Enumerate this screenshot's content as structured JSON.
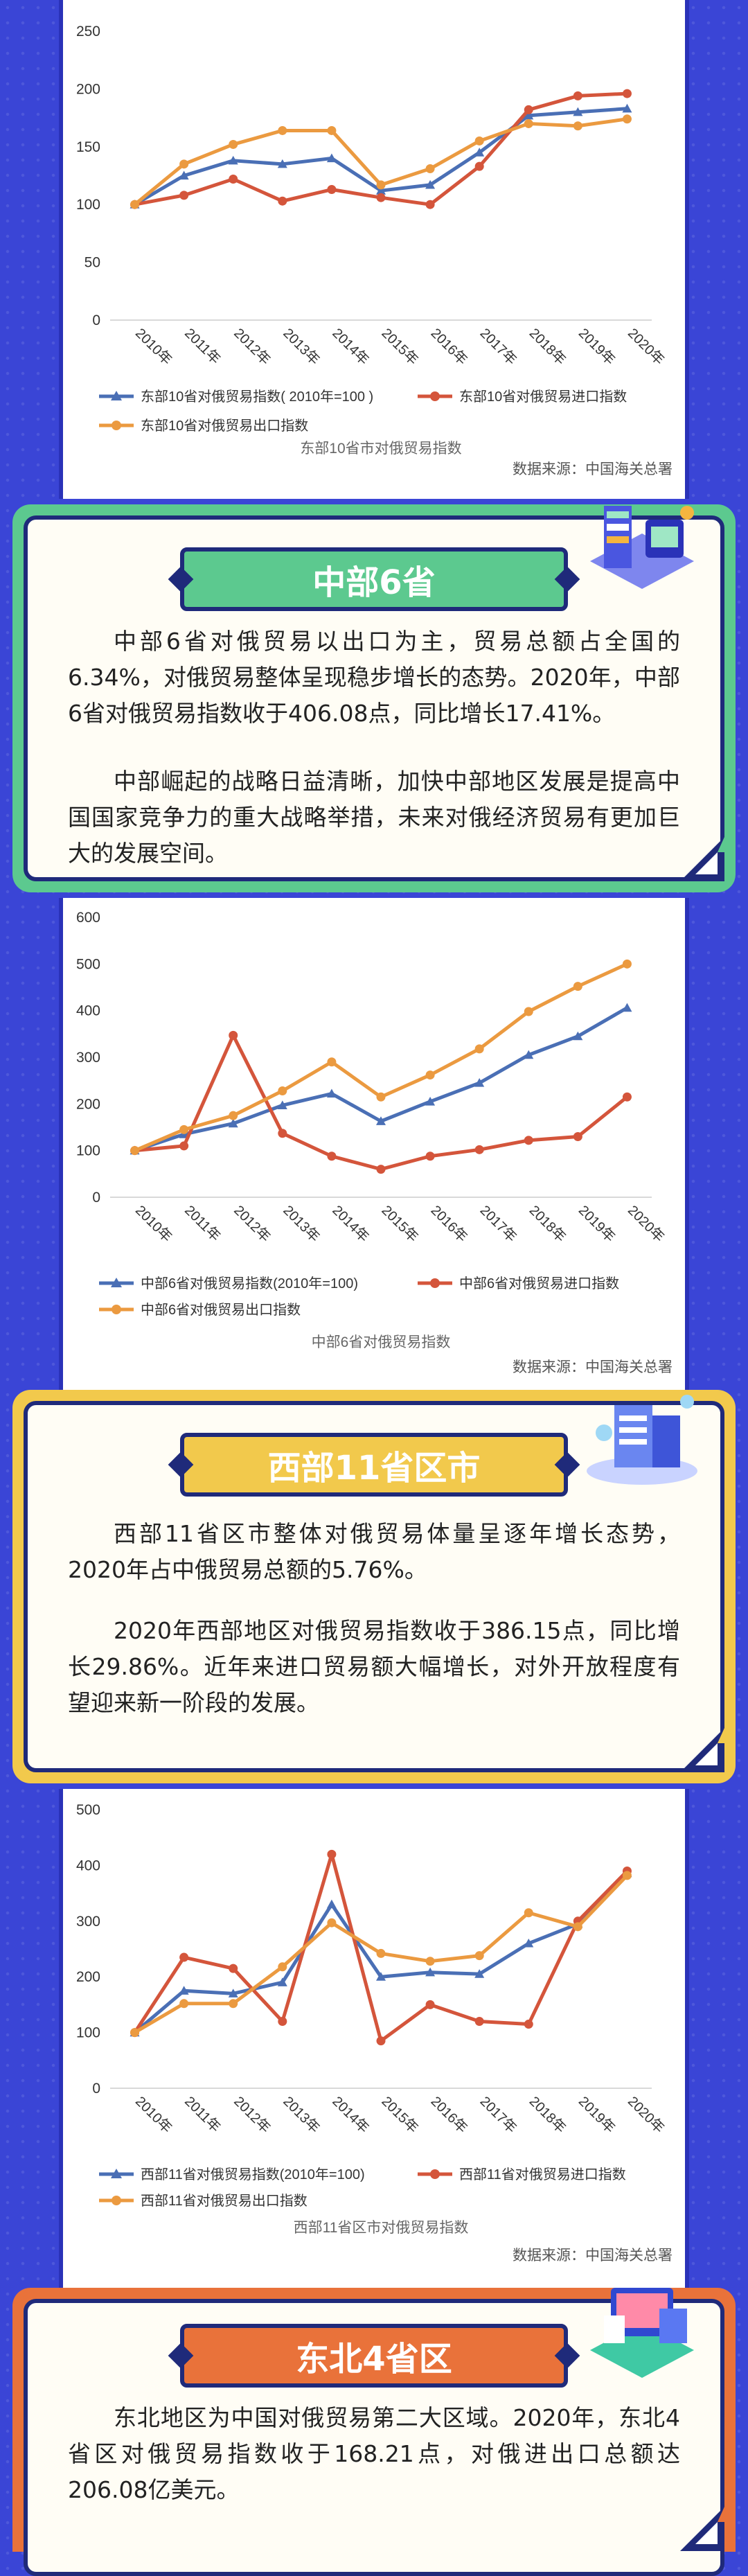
{
  "years": [
    "2010年",
    "2011年",
    "2012年",
    "2013年",
    "2014年",
    "2015年",
    "2016年",
    "2017年",
    "2018年",
    "2019年",
    "2020年"
  ],
  "source": "数据来源：中国海关总署",
  "colors": {
    "blue": "#4a6fb5",
    "red": "#d4553b",
    "orange": "#eb9a40",
    "green": "#5cc98f",
    "yellow": "#f2c94c",
    "coral": "#e9723a",
    "navy": "#1f2a7a"
  },
  "sections": {
    "central": {
      "title": "中部6省",
      "p1": "中部6省对俄贸易以出口为主，贸易总额占全国的6.34%，对俄贸易整体呈现稳步增长的态势。2020年，中部6省对俄贸易指数收于406.08点，同比增长17.41%。",
      "p2": "中部崛起的战略日益清晰，加快中部地区发展是提高中国国家竞争力的重大战略举措，未来对俄经济贸易有更加巨大的发展空间。"
    },
    "west": {
      "title": "西部11省区市",
      "p1": "西部11省区市整体对俄贸易体量呈逐年增长态势，2020年占中俄贸易总额的5.76%。",
      "p2": "2020年西部地区对俄贸易指数收于386.15点，同比增长29.86%。近年来进口贸易额大幅增长，对外开放程度有望迎来新一阶段的发展。"
    },
    "northeast": {
      "title": "东北4省区",
      "p1": "东北地区为中国对俄贸易第二大区域。2020年，东北4省区对俄贸易指数收于168.21点，对俄进出口总额达206.08亿美元。"
    }
  },
  "chart_data": [
    {
      "type": "line",
      "caption": "东部10省市对俄贸易指数",
      "x": [
        "2010年",
        "2011年",
        "2012年",
        "2013年",
        "2014年",
        "2015年",
        "2016年",
        "2017年",
        "2018年",
        "2019年",
        "2020年"
      ],
      "ylim": [
        0,
        250
      ],
      "yticks": [
        0,
        50,
        100,
        150,
        200,
        250
      ],
      "legend_position": "bottom",
      "grid": false,
      "series": [
        {
          "name": "东部10省对俄贸易指数( 2010年=100 )",
          "color": "#4a6fb5",
          "values": [
            100,
            125,
            138,
            135,
            140,
            112,
            117,
            145,
            177,
            180,
            183
          ]
        },
        {
          "name": "东部10省对俄贸易进口指数",
          "color": "#d4553b",
          "values": [
            100,
            108,
            122,
            103,
            113,
            106,
            100,
            133,
            182,
            194,
            196
          ]
        },
        {
          "name": "东部10省对俄贸易出口指数",
          "color": "#eb9a40",
          "values": [
            100,
            135,
            152,
            164,
            164,
            117,
            131,
            155,
            170,
            168,
            174
          ]
        }
      ]
    },
    {
      "type": "line",
      "caption": "中部6省对俄贸易指数",
      "x": [
        "2010年",
        "2011年",
        "2012年",
        "2013年",
        "2014年",
        "2015年",
        "2016年",
        "2017年",
        "2018年",
        "2019年",
        "2020年"
      ],
      "ylim": [
        0,
        600
      ],
      "yticks": [
        0,
        100,
        200,
        300,
        400,
        500,
        600
      ],
      "legend_position": "bottom",
      "grid": false,
      "series": [
        {
          "name": "中部6省对俄贸易指数(2010年=100)",
          "color": "#4a6fb5",
          "values": [
            100,
            135,
            158,
            197,
            222,
            163,
            205,
            245,
            305,
            345,
            406
          ]
        },
        {
          "name": "中部6省对俄贸易进口指数",
          "color": "#d4553b",
          "values": [
            100,
            110,
            347,
            137,
            88,
            60,
            88,
            102,
            122,
            130,
            215
          ]
        },
        {
          "name": "中部6省对俄贸易出口指数",
          "color": "#eb9a40",
          "values": [
            100,
            145,
            175,
            228,
            290,
            215,
            262,
            318,
            398,
            452,
            500
          ]
        }
      ]
    },
    {
      "type": "line",
      "caption": "西部11省区市对俄贸易指数",
      "x": [
        "2010年",
        "2011年",
        "2012年",
        "2013年",
        "2014年",
        "2015年",
        "2016年",
        "2017年",
        "2018年",
        "2019年",
        "2020年"
      ],
      "ylim": [
        0,
        500
      ],
      "yticks": [
        0,
        100,
        200,
        300,
        400,
        500
      ],
      "legend_position": "bottom",
      "grid": false,
      "series": [
        {
          "name": "西部11省对俄贸易指数(2010年=100)",
          "color": "#4a6fb5",
          "values": [
            100,
            175,
            170,
            190,
            330,
            200,
            208,
            205,
            260,
            295,
            386
          ]
        },
        {
          "name": "西部11省对俄贸易进口指数",
          "color": "#d4553b",
          "values": [
            100,
            235,
            215,
            120,
            420,
            85,
            150,
            120,
            115,
            300,
            390
          ]
        },
        {
          "name": "西部11省对俄贸易出口指数",
          "color": "#eb9a40",
          "values": [
            100,
            152,
            152,
            218,
            297,
            242,
            228,
            238,
            315,
            290,
            382
          ]
        }
      ]
    }
  ]
}
